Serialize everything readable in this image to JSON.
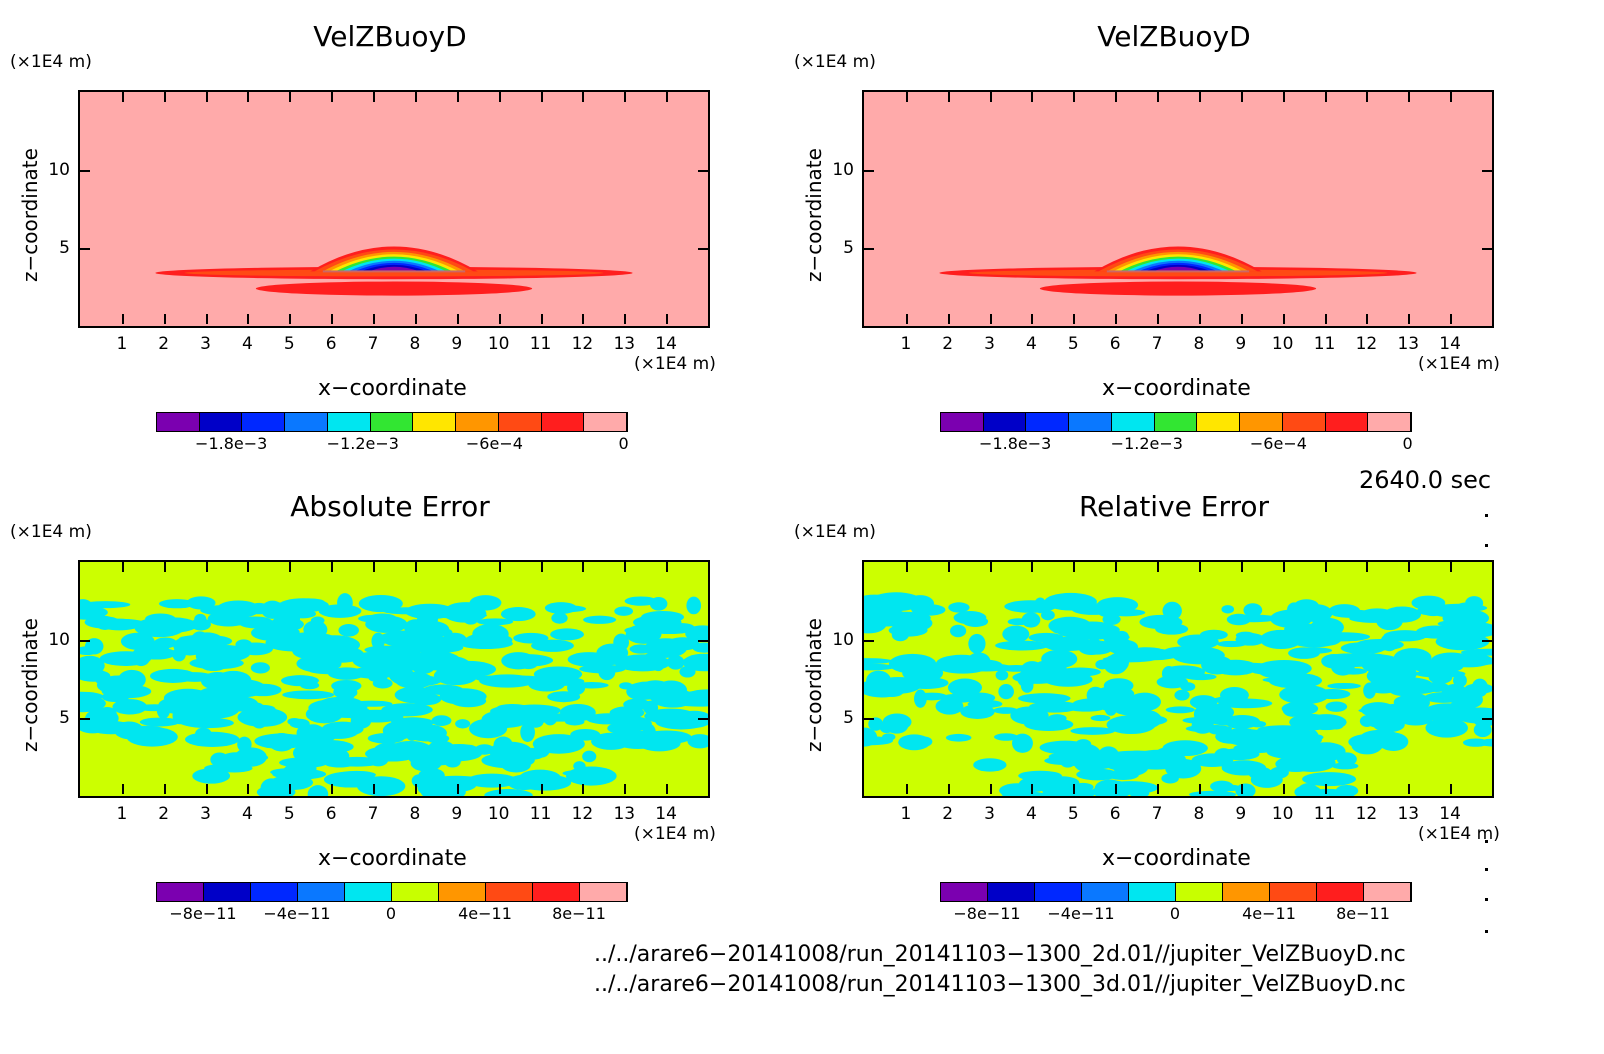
{
  "panels": [
    {
      "title": "VelZBuoyD",
      "unit": "(×1E4 m)",
      "ylabel": "z−coordinate",
      "xlabel": "x−coordinate",
      "xunit": "(×1E4 m)",
      "kind": "field"
    },
    {
      "title": "VelZBuoyD",
      "unit": "(×1E4 m)",
      "ylabel": "z−coordinate",
      "xlabel": "x−coordinate",
      "xunit": "(×1E4 m)",
      "kind": "field"
    },
    {
      "title": "Absolute Error",
      "unit": "(×1E4 m)",
      "ylabel": "z−coordinate",
      "xlabel": "x−coordinate",
      "xunit": "(×1E4 m)",
      "kind": "error"
    },
    {
      "title": "Relative Error",
      "unit": "(×1E4 m)",
      "ylabel": "z−coordinate",
      "xlabel": "x−coordinate",
      "xunit": "(×1E4 m)",
      "kind": "error"
    }
  ],
  "time_label": "2640.0 sec",
  "files": [
    "../../arare6−20141008/run_20141103−1300_2d.01//jupiter_VelZBuoyD.nc",
    "../../arare6−20141008/run_20141103−1300_3d.01//jupiter_VelZBuoyD.nc"
  ],
  "colors": {
    "field_scale": [
      "#7b00b0",
      "#0000c8",
      "#0028ff",
      "#0a78ff",
      "#00e6f0",
      "#32e632",
      "#ffe600",
      "#ff9600",
      "#ff4a14",
      "#ff1e1e",
      "#ffaaaa"
    ],
    "error_scale": [
      "#7b00b0",
      "#0000c8",
      "#0028ff",
      "#0a78ff",
      "#00e6f0",
      "#c8ff00",
      "#ff9600",
      "#ff4a14",
      "#ff1e1e",
      "#ffaaaa"
    ],
    "field_bg": "#ffaaaa",
    "error_bg": "#ccff00",
    "error_patch": "#00e6f0"
  },
  "colorbar_labels": {
    "field": [
      "−1.8e−3",
      "−1.2e−3",
      "−6e−4",
      "0"
    ],
    "error": [
      "−8e−11",
      "−4e−11",
      "0",
      "4e−11",
      "8e−11"
    ]
  },
  "chart_data": [
    {
      "type": "heatmap",
      "title": "VelZBuoyD",
      "xlabel": "x−coordinate",
      "ylabel": "z−coordinate",
      "xunit": "(×1E4 m)",
      "yunit": "(×1E4 m)",
      "xlim": [
        0,
        15
      ],
      "ylim": [
        0,
        15
      ],
      "xticks": [
        1,
        2,
        3,
        4,
        5,
        6,
        7,
        8,
        9,
        10,
        11,
        12,
        13,
        14
      ],
      "yticks": [
        5,
        10
      ],
      "colorbar": {
        "ticks": [
          "−1.8e−3",
          "−1.2e−3",
          "−6e−4",
          "0"
        ],
        "range": [
          -0.0021,
          0
        ]
      },
      "feature": "negative updraft anomaly centred near x=7.5, z=4"
    },
    {
      "type": "heatmap",
      "title": "VelZBuoyD",
      "xlabel": "x−coordinate",
      "ylabel": "z−coordinate",
      "xunit": "(×1E4 m)",
      "yunit": "(×1E4 m)",
      "xlim": [
        0,
        15
      ],
      "ylim": [
        0,
        15
      ],
      "xticks": [
        1,
        2,
        3,
        4,
        5,
        6,
        7,
        8,
        9,
        10,
        11,
        12,
        13,
        14
      ],
      "yticks": [
        5,
        10
      ],
      "colorbar": {
        "ticks": [
          "−1.8e−3",
          "−1.2e−3",
          "−6e−4",
          "0"
        ],
        "range": [
          -0.0021,
          0
        ]
      },
      "feature": "negative updraft anomaly centred near x=7.5, z=4"
    },
    {
      "type": "heatmap",
      "title": "Absolute Error",
      "xlabel": "x−coordinate",
      "ylabel": "z−coordinate",
      "xunit": "(×1E4 m)",
      "yunit": "(×1E4 m)",
      "xlim": [
        0,
        15
      ],
      "ylim": [
        0,
        15
      ],
      "xticks": [
        1,
        2,
        3,
        4,
        5,
        6,
        7,
        8,
        9,
        10,
        11,
        12,
        13,
        14
      ],
      "yticks": [
        5,
        10
      ],
      "colorbar": {
        "ticks": [
          "−8e−11",
          "−4e−11",
          "0",
          "4e−11",
          "8e−11"
        ],
        "range": [
          -1e-10,
          1e-10
        ]
      },
      "feature": "noise-level values between -1e-11 and 1e-11 for z<13"
    },
    {
      "type": "heatmap",
      "title": "Relative Error",
      "xlabel": "x−coordinate",
      "ylabel": "z−coordinate",
      "xunit": "(×1E4 m)",
      "yunit": "(×1E4 m)",
      "xlim": [
        0,
        15
      ],
      "ylim": [
        0,
        15
      ],
      "xticks": [
        1,
        2,
        3,
        4,
        5,
        6,
        7,
        8,
        9,
        10,
        11,
        12,
        13,
        14
      ],
      "yticks": [
        5,
        10
      ],
      "colorbar": {
        "ticks": [
          "−8e−11",
          "−4e−11",
          "0",
          "4e−11",
          "8e−11"
        ],
        "range": [
          -1e-10,
          1e-10
        ]
      },
      "feature": "noise-level values between -1e-11 and 1e-11 for z<13"
    }
  ]
}
